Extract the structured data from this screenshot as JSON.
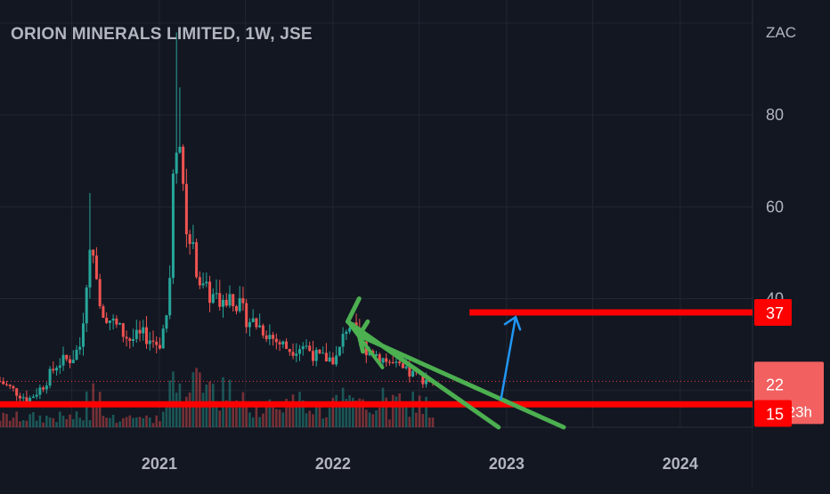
{
  "header": {
    "title": "ORION MINERALS LIMITED, 1W, JSE"
  },
  "colors": {
    "background": "#131722",
    "grid": "#222631",
    "axis_text": "#b2b5be",
    "up": "#26a69a",
    "down": "#ef5350",
    "support_line": "#ff0000",
    "channel": "#4caf50",
    "arrow": "#2196f3",
    "price_line": "#f23645"
  },
  "chart_data": {
    "type": "candlestick",
    "currency": "ZAC",
    "ylim": [
      12,
      100
    ],
    "yticks": [
      {
        "value": 80,
        "label": "80"
      },
      {
        "value": 60,
        "label": "60"
      },
      {
        "value": 40,
        "label": "40"
      }
    ],
    "xticks": [
      {
        "date": "2021-01-01",
        "label": "2021"
      },
      {
        "date": "2022-01-01",
        "label": "2022"
      },
      {
        "date": "2023-01-01",
        "label": "2023"
      },
      {
        "date": "2024-01-01",
        "label": "2024"
      }
    ],
    "xlim": [
      "2020-02-01",
      "2024-06-01"
    ],
    "price_labels": [
      {
        "value": 37,
        "label": "37",
        "type": "level"
      },
      {
        "value": 22,
        "label": "22",
        "sub": "3d 23h",
        "type": "last"
      },
      {
        "value": 15,
        "label": "15",
        "type": "level"
      }
    ],
    "last_price": 22,
    "price_series": [
      {
        "date": "2020-02-01",
        "close": 22
      },
      {
        "date": "2020-03-01",
        "close": 20
      },
      {
        "date": "2020-04-01",
        "close": 18
      },
      {
        "date": "2020-05-01",
        "close": 21
      },
      {
        "date": "2020-06-01",
        "close": 26
      },
      {
        "date": "2020-07-01",
        "close": 27
      },
      {
        "date": "2020-07-20",
        "close": 30
      },
      {
        "date": "2020-08-01",
        "close": 45
      },
      {
        "date": "2020-08-15",
        "close": 52
      },
      {
        "date": "2020-09-01",
        "close": 38
      },
      {
        "date": "2020-10-01",
        "close": 34
      },
      {
        "date": "2020-11-01",
        "close": 31
      },
      {
        "date": "2020-12-01",
        "close": 32
      },
      {
        "date": "2021-01-01",
        "close": 30
      },
      {
        "date": "2021-01-20",
        "close": 38
      },
      {
        "date": "2021-02-01",
        "close": 70
      },
      {
        "date": "2021-02-10",
        "close": 80
      },
      {
        "date": "2021-02-20",
        "close": 62
      },
      {
        "date": "2021-03-01",
        "close": 55
      },
      {
        "date": "2021-04-01",
        "close": 42
      },
      {
        "date": "2021-05-01",
        "close": 40
      },
      {
        "date": "2021-06-01",
        "close": 41
      },
      {
        "date": "2021-07-01",
        "close": 36
      },
      {
        "date": "2021-08-01",
        "close": 34
      },
      {
        "date": "2021-09-01",
        "close": 31
      },
      {
        "date": "2021-10-01",
        "close": 29
      },
      {
        "date": "2021-11-01",
        "close": 30
      },
      {
        "date": "2021-12-01",
        "close": 27
      },
      {
        "date": "2022-01-10",
        "close": 27
      },
      {
        "date": "2022-02-01",
        "close": 35
      },
      {
        "date": "2022-03-01",
        "close": 30
      },
      {
        "date": "2022-04-01",
        "close": 28
      },
      {
        "date": "2022-05-01",
        "close": 26
      },
      {
        "date": "2022-06-01",
        "close": 24
      },
      {
        "date": "2022-07-01",
        "close": 23
      },
      {
        "date": "2022-08-01",
        "close": 22
      }
    ],
    "peak_wicks": [
      {
        "date": "2020-08-10",
        "high": 63
      },
      {
        "date": "2021-02-05",
        "high": 98
      },
      {
        "date": "2021-02-15",
        "high": 86
      }
    ],
    "annotations": {
      "horizontal_lines": [
        {
          "value": 37,
          "from": "2022-10-15",
          "to": "2024-06-01"
        },
        {
          "value": 17,
          "from": "2020-02-01",
          "to": "2024-06-01"
        }
      ],
      "channel_lines": [
        {
          "from": {
            "date": "2022-02-01",
            "value": 35
          },
          "to": {
            "date": "2022-12-15",
            "value": 12
          }
        },
        {
          "from": {
            "date": "2022-02-25",
            "value": 32
          },
          "to": {
            "date": "2023-05-01",
            "value": 12
          }
        }
      ],
      "upper_channel_marker": {
        "from": {
          "date": "2022-02-01",
          "value": 35
        },
        "to": {
          "date": "2022-04-15",
          "value": 25
        }
      },
      "arrow": {
        "from": {
          "date": "2022-12-20",
          "value": 18
        },
        "to": {
          "date": "2023-01-20",
          "value": 36
        }
      }
    }
  }
}
